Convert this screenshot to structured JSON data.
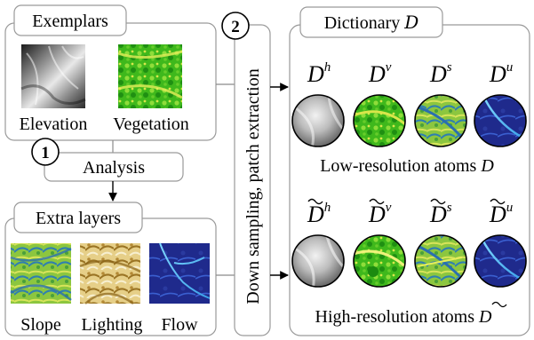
{
  "exemplars": {
    "title": "Exemplars",
    "items": [
      {
        "label": "Elevation",
        "texture": "elevation"
      },
      {
        "label": "Vegetation",
        "texture": "vegetation"
      }
    ]
  },
  "analysis": {
    "step": "1",
    "label": "Analysis"
  },
  "extra_layers": {
    "title": "Extra layers",
    "items": [
      {
        "label": "Slope",
        "texture": "slope"
      },
      {
        "label": "Lighting",
        "texture": "lighting"
      },
      {
        "label": "Flow",
        "texture": "flow"
      }
    ]
  },
  "extraction": {
    "step": "2",
    "label": "Down sampling, patch extraction"
  },
  "dictionary": {
    "title": "Dictionary",
    "symbol": "D",
    "low": {
      "caption": "Low-resolution atoms",
      "atoms": [
        {
          "superscript": "h",
          "texture": "elevation"
        },
        {
          "superscript": "v",
          "texture": "vegetation"
        },
        {
          "superscript": "s",
          "texture": "slope"
        },
        {
          "superscript": "u",
          "texture": "flow"
        }
      ]
    },
    "high": {
      "caption": "High-resolution atoms",
      "atoms": [
        {
          "superscript": "h",
          "texture": "elevation"
        },
        {
          "superscript": "v",
          "texture": "vegetation"
        },
        {
          "superscript": "s",
          "texture": "slope"
        },
        {
          "superscript": "u",
          "texture": "flow"
        }
      ]
    }
  },
  "colors": {
    "box_border": "#9a9a9a",
    "connector": "#8a8a8a",
    "vegetation": "#3fbf1f",
    "slope": "#9bd04a",
    "lighting": "#c9a64c",
    "flow": "#23288a"
  }
}
